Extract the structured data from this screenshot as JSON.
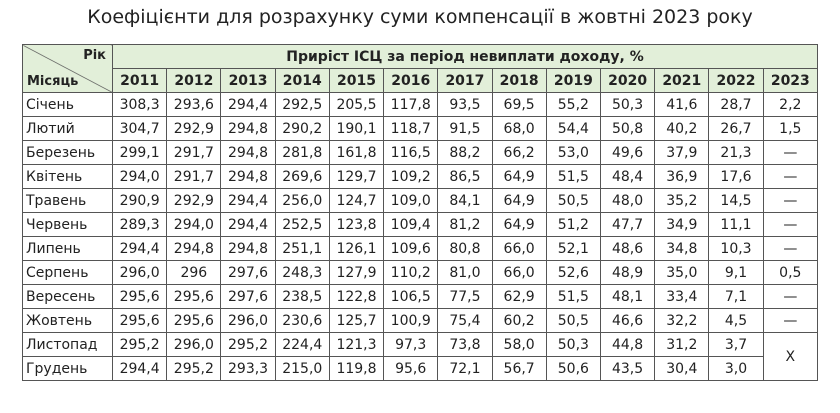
{
  "header": {
    "title": "Коефіцієнти для розрахунку суми компенсації в жовтні 2023 року"
  },
  "table": {
    "corner_top": "Рік",
    "corner_bottom": "Місяць",
    "group_header": "Приріст ІСЦ за період невиплати доходу, %",
    "years": [
      "2011",
      "2012",
      "2013",
      "2014",
      "2015",
      "2016",
      "2017",
      "2018",
      "2019",
      "2020",
      "2021",
      "2022",
      "2023"
    ],
    "rows": [
      {
        "month": "Січень",
        "values": [
          "308,3",
          "293,6",
          "294,4",
          "292,5",
          "205,5",
          "117,8",
          "93,5",
          "69,5",
          "55,2",
          "50,3",
          "41,6",
          "28,7",
          "2,2"
        ]
      },
      {
        "month": "Лютий",
        "values": [
          "304,7",
          "292,9",
          "294,8",
          "290,2",
          "190,1",
          "118,7",
          "91,5",
          "68,0",
          "54,4",
          "50,8",
          "40,2",
          "26,7",
          "1,5"
        ]
      },
      {
        "month": "Березень",
        "values": [
          "299,1",
          "291,7",
          "294,8",
          "281,8",
          "161,8",
          "116,5",
          "88,2",
          "66,2",
          "53,0",
          "49,6",
          "37,9",
          "21,3",
          "—"
        ]
      },
      {
        "month": "Квітень",
        "values": [
          "294,0",
          "291,7",
          "294,8",
          "269,6",
          "129,7",
          "109,2",
          "86,5",
          "64,9",
          "51,5",
          "48,4",
          "36,9",
          "17,6",
          "—"
        ]
      },
      {
        "month": "Травень",
        "values": [
          "290,9",
          "292,9",
          "294,4",
          "256,0",
          "124,7",
          "109,0",
          "84,1",
          "64,9",
          "50,5",
          "48,0",
          "35,2",
          "14,5",
          "—"
        ]
      },
      {
        "month": "Червень",
        "values": [
          "289,3",
          "294,0",
          "294,4",
          "252,5",
          "123,8",
          "109,4",
          "81,2",
          "64,9",
          "51,2",
          "47,7",
          "34,9",
          "11,1",
          "—"
        ]
      },
      {
        "month": "Липень",
        "values": [
          "294,4",
          "294,8",
          "294,8",
          "251,1",
          "126,1",
          "109,6",
          "80,8",
          "66,0",
          "52,1",
          "48,6",
          "34,8",
          "10,3",
          "—"
        ]
      },
      {
        "month": "Серпень",
        "values": [
          "296,0",
          "296",
          "297,6",
          "248,3",
          "127,9",
          "110,2",
          "81,0",
          "66,0",
          "52,6",
          "48,9",
          "35,0",
          "9,1",
          "0,5"
        ]
      },
      {
        "month": "Вересень",
        "values": [
          "295,6",
          "295,6",
          "297,6",
          "238,5",
          "122,8",
          "106,5",
          "77,5",
          "62,9",
          "51,5",
          "48,1",
          "33,4",
          "7,1",
          "—"
        ]
      },
      {
        "month": "Жовтень",
        "values": [
          "295,6",
          "295,6",
          "296,0",
          "230,6",
          "125,7",
          "100,9",
          "75,4",
          "60,2",
          "50,5",
          "46,6",
          "32,2",
          "4,5",
          "—"
        ]
      },
      {
        "month": "Листопад",
        "values": [
          "295,2",
          "296,0",
          "295,2",
          "224,4",
          "121,3",
          "97,3",
          "73,8",
          "58,0",
          "50,3",
          "44,8",
          "31,2",
          "3,7"
        ]
      },
      {
        "month": "Грудень",
        "values": [
          "294,4",
          "295,2",
          "293,3",
          "215,0",
          "119,8",
          "95,6",
          "72,1",
          "56,7",
          "50,6",
          "43,5",
          "30,4",
          "3,0"
        ]
      }
    ],
    "span_cell": "Х"
  }
}
